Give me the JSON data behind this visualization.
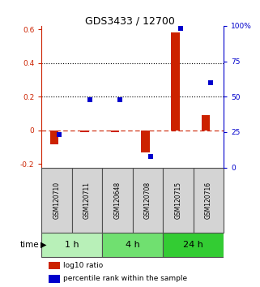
{
  "title": "GDS3433 / 12700",
  "samples": [
    "GSM120710",
    "GSM120711",
    "GSM120648",
    "GSM120708",
    "GSM120715",
    "GSM120716"
  ],
  "log10_ratio": [
    -0.08,
    -0.01,
    -0.01,
    -0.13,
    0.58,
    0.09
  ],
  "percentile_rank": [
    23,
    48,
    48,
    8,
    98,
    60
  ],
  "time_groups": [
    {
      "label": "1 h",
      "samples": [
        0,
        1
      ],
      "color": "#b8f0b8"
    },
    {
      "label": "4 h",
      "samples": [
        2,
        3
      ],
      "color": "#70e070"
    },
    {
      "label": "24 h",
      "samples": [
        4,
        5
      ],
      "color": "#33cc33"
    }
  ],
  "bar_color_red": "#cc2200",
  "bar_color_blue": "#0000cc",
  "ylim_left": [
    -0.22,
    0.62
  ],
  "ylim_right": [
    0,
    100
  ],
  "yticks_left": [
    -0.2,
    0.0,
    0.2,
    0.4,
    0.6
  ],
  "ytick_labels_left": [
    "-0.2",
    "0",
    "0.2",
    "0.4",
    "0.6"
  ],
  "yticks_right": [
    0,
    25,
    50,
    75,
    100
  ],
  "ytick_labels_right": [
    "0",
    "25",
    "50",
    "75",
    "100%"
  ],
  "hline_y": [
    0.2,
    0.4
  ],
  "dashed_hline_y": 0.0,
  "bar_width": 0.28,
  "legend_red": "log10 ratio",
  "legend_blue": "percentile rank within the sample",
  "sample_box_color": "#d4d4d4",
  "sample_box_border": "#505050",
  "time_label": "time",
  "fig_bg": "#ffffff"
}
